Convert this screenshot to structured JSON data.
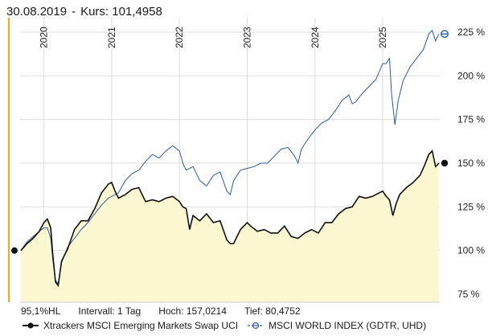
{
  "header": {
    "date": "30.08.2019",
    "separator": "-",
    "kurs_label": "Kurs: 101,4958"
  },
  "stats": {
    "performance": "95,1%HL",
    "interval": "Intervall: 1 Tag",
    "high": "Hoch: 157,0214",
    "low": "Tief: 80,4752"
  },
  "colors": {
    "series1": "#111111",
    "series2": "#2a5aa8",
    "area_fill": "#fbf7d0",
    "grid": "#dddddd",
    "accent": "#f5a623"
  },
  "chart_data": {
    "type": "line",
    "title": "",
    "xlabel": "",
    "ylabel": "",
    "x_ticks": [
      "2020",
      "2021",
      "2022",
      "2023",
      "2024",
      "2025"
    ],
    "y_ticks": [
      75,
      100,
      125,
      150,
      175,
      200,
      225
    ],
    "y_tick_labels": [
      "75 %",
      "100 %",
      "125 %",
      "150 %",
      "175 %",
      "200 %",
      "225 %"
    ],
    "xlim": [
      2019.66,
      2025.83
    ],
    "ylim": [
      70,
      237
    ],
    "series": [
      {
        "name": "Xtrackers MSCI Emerging Markets Swap UCI",
        "filled": true,
        "points": [
          [
            2019.66,
            100
          ],
          [
            2019.75,
            104
          ],
          [
            2019.84,
            107
          ],
          [
            2019.93,
            111
          ],
          [
            2020.0,
            116
          ],
          [
            2020.05,
            118
          ],
          [
            2020.1,
            113
          ],
          [
            2020.13,
            98
          ],
          [
            2020.17,
            82
          ],
          [
            2020.21,
            80
          ],
          [
            2020.26,
            94
          ],
          [
            2020.35,
            101
          ],
          [
            2020.45,
            112
          ],
          [
            2020.55,
            117
          ],
          [
            2020.65,
            117
          ],
          [
            2020.75,
            124
          ],
          [
            2020.85,
            133
          ],
          [
            2020.95,
            138
          ],
          [
            2021.0,
            139
          ],
          [
            2021.05,
            134
          ],
          [
            2021.1,
            130
          ],
          [
            2021.2,
            132
          ],
          [
            2021.3,
            135
          ],
          [
            2021.4,
            136
          ],
          [
            2021.5,
            128
          ],
          [
            2021.6,
            129
          ],
          [
            2021.7,
            128
          ],
          [
            2021.8,
            130
          ],
          [
            2021.9,
            131
          ],
          [
            2022.0,
            128
          ],
          [
            2022.05,
            125
          ],
          [
            2022.1,
            124
          ],
          [
            2022.15,
            112
          ],
          [
            2022.2,
            120
          ],
          [
            2022.3,
            117
          ],
          [
            2022.4,
            121
          ],
          [
            2022.5,
            116
          ],
          [
            2022.6,
            117
          ],
          [
            2022.7,
            106
          ],
          [
            2022.75,
            104
          ],
          [
            2022.8,
            104
          ],
          [
            2022.9,
            112
          ],
          [
            2023.0,
            116
          ],
          [
            2023.05,
            114
          ],
          [
            2023.15,
            111
          ],
          [
            2023.25,
            112
          ],
          [
            2023.35,
            110
          ],
          [
            2023.45,
            110
          ],
          [
            2023.55,
            114
          ],
          [
            2023.65,
            108
          ],
          [
            2023.75,
            107
          ],
          [
            2023.85,
            110
          ],
          [
            2023.95,
            112
          ],
          [
            2024.0,
            111
          ],
          [
            2024.05,
            110
          ],
          [
            2024.15,
            116
          ],
          [
            2024.25,
            116
          ],
          [
            2024.35,
            121
          ],
          [
            2024.45,
            124
          ],
          [
            2024.55,
            125
          ],
          [
            2024.65,
            131
          ],
          [
            2024.75,
            130
          ],
          [
            2024.85,
            131
          ],
          [
            2024.9,
            132
          ],
          [
            2025.0,
            134
          ],
          [
            2025.05,
            131
          ],
          [
            2025.1,
            129
          ],
          [
            2025.15,
            120
          ],
          [
            2025.2,
            127
          ],
          [
            2025.25,
            132
          ],
          [
            2025.35,
            136
          ],
          [
            2025.45,
            139
          ],
          [
            2025.55,
            143
          ],
          [
            2025.62,
            149
          ],
          [
            2025.68,
            155
          ],
          [
            2025.73,
            157
          ],
          [
            2025.78,
            148
          ],
          [
            2025.83,
            150
          ]
        ]
      },
      {
        "name": "MSCI WORLD INDEX (GDTR, UHD)",
        "filled": false,
        "points": [
          [
            2019.66,
            100
          ],
          [
            2019.75,
            105
          ],
          [
            2019.84,
            108
          ],
          [
            2019.93,
            111
          ],
          [
            2020.0,
            113
          ],
          [
            2020.05,
            113
          ],
          [
            2020.1,
            107
          ],
          [
            2020.13,
            95
          ],
          [
            2020.17,
            83
          ],
          [
            2020.21,
            81
          ],
          [
            2020.26,
            93
          ],
          [
            2020.35,
            102
          ],
          [
            2020.45,
            107
          ],
          [
            2020.55,
            112
          ],
          [
            2020.65,
            116
          ],
          [
            2020.75,
            121
          ],
          [
            2020.85,
            126
          ],
          [
            2020.95,
            130
          ],
          [
            2021.0,
            131
          ],
          [
            2021.1,
            133
          ],
          [
            2021.2,
            140
          ],
          [
            2021.3,
            144
          ],
          [
            2021.4,
            146
          ],
          [
            2021.5,
            151
          ],
          [
            2021.6,
            155
          ],
          [
            2021.7,
            153
          ],
          [
            2021.8,
            157
          ],
          [
            2021.9,
            160
          ],
          [
            2022.0,
            157
          ],
          [
            2022.05,
            150
          ],
          [
            2022.1,
            146
          ],
          [
            2022.2,
            148
          ],
          [
            2022.3,
            140
          ],
          [
            2022.4,
            137
          ],
          [
            2022.5,
            143
          ],
          [
            2022.6,
            145
          ],
          [
            2022.7,
            134
          ],
          [
            2022.75,
            132
          ],
          [
            2022.8,
            140
          ],
          [
            2022.9,
            146
          ],
          [
            2023.0,
            147
          ],
          [
            2023.1,
            148
          ],
          [
            2023.2,
            150
          ],
          [
            2023.3,
            150
          ],
          [
            2023.4,
            154
          ],
          [
            2023.5,
            158
          ],
          [
            2023.6,
            159
          ],
          [
            2023.7,
            154
          ],
          [
            2023.75,
            150
          ],
          [
            2023.8,
            158
          ],
          [
            2023.9,
            164
          ],
          [
            2024.0,
            169
          ],
          [
            2024.1,
            173
          ],
          [
            2024.2,
            175
          ],
          [
            2024.3,
            180
          ],
          [
            2024.4,
            186
          ],
          [
            2024.5,
            189
          ],
          [
            2024.55,
            184
          ],
          [
            2024.6,
            185
          ],
          [
            2024.7,
            190
          ],
          [
            2024.8,
            194
          ],
          [
            2024.9,
            198
          ],
          [
            2025.0,
            207
          ],
          [
            2025.05,
            207
          ],
          [
            2025.1,
            210
          ],
          [
            2025.13,
            190
          ],
          [
            2025.18,
            172
          ],
          [
            2025.23,
            186
          ],
          [
            2025.3,
            197
          ],
          [
            2025.4,
            205
          ],
          [
            2025.5,
            210
          ],
          [
            2025.6,
            215
          ],
          [
            2025.68,
            224
          ],
          [
            2025.73,
            226
          ],
          [
            2025.78,
            220
          ],
          [
            2025.83,
            224
          ]
        ]
      }
    ]
  }
}
